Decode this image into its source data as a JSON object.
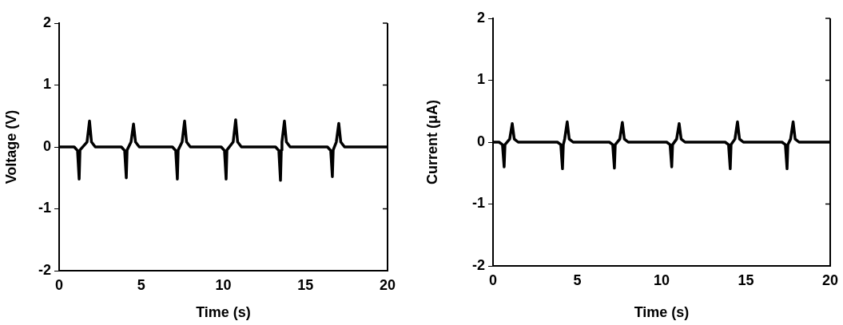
{
  "chart_data": [
    {
      "type": "line",
      "xlabel": "Time (s)",
      "ylabel": "Voltage (V)",
      "color": "#000000",
      "grid": false,
      "legend": false,
      "marker": "none",
      "xlim": [
        0,
        20
      ],
      "xticks": [
        0,
        5,
        10,
        15,
        20
      ],
      "ylim": [
        -2,
        2
      ],
      "yticks": [
        -2,
        -1,
        0,
        1,
        2
      ],
      "x": [
        0,
        0.92,
        1.12,
        1.22,
        1.27,
        1.7,
        1.85,
        1.97,
        2.2,
        3.79,
        3.99,
        4.09,
        4.14,
        4.38,
        4.53,
        4.65,
        4.88,
        6.9,
        7.1,
        7.2,
        7.25,
        7.49,
        7.64,
        7.76,
        7.99,
        9.87,
        10.07,
        10.17,
        10.22,
        10.6,
        10.75,
        10.87,
        11.1,
        13.18,
        13.38,
        13.48,
        13.53,
        13.57,
        13.72,
        13.84,
        14.07,
        16.34,
        16.54,
        16.64,
        16.69,
        16.88,
        17.03,
        17.15,
        17.38,
        20
      ],
      "values": [
        0,
        0,
        -0.06,
        -0.52,
        -0.05,
        0.08,
        0.42,
        0.08,
        0,
        0,
        -0.06,
        -0.5,
        -0.05,
        0.08,
        0.37,
        0.08,
        0,
        0,
        -0.06,
        -0.52,
        -0.05,
        0.08,
        0.42,
        0.08,
        0,
        0,
        -0.06,
        -0.52,
        -0.05,
        0.08,
        0.44,
        0.08,
        0,
        0,
        -0.06,
        -0.54,
        -0.05,
        0.08,
        0.42,
        0.08,
        0,
        0,
        -0.06,
        -0.48,
        -0.05,
        0.08,
        0.38,
        0.08,
        0,
        0
      ]
    },
    {
      "type": "line",
      "xlabel": "Time (s)",
      "ylabel": "Current (μA)",
      "color": "#000000",
      "grid": false,
      "legend": false,
      "marker": "none",
      "xlim": [
        0,
        20
      ],
      "xticks": [
        0,
        5,
        10,
        15,
        20
      ],
      "ylim": [
        -2,
        2
      ],
      "yticks": [
        -2,
        -1,
        0,
        1,
        2
      ],
      "x": [
        0,
        0.36,
        0.56,
        0.66,
        0.71,
        0.99,
        1.14,
        1.26,
        1.49,
        3.82,
        4.02,
        4.12,
        4.17,
        4.25,
        4.4,
        4.52,
        4.75,
        6.9,
        7.1,
        7.2,
        7.25,
        7.52,
        7.67,
        7.79,
        8.02,
        10.3,
        10.5,
        10.6,
        10.65,
        10.89,
        11.04,
        11.16,
        11.39,
        13.77,
        13.97,
        14.07,
        14.12,
        14.35,
        14.5,
        14.62,
        14.85,
        17.14,
        17.34,
        17.44,
        17.49,
        17.65,
        17.8,
        17.92,
        18.15,
        20
      ],
      "values": [
        0,
        0,
        -0.04,
        -0.4,
        -0.04,
        0.05,
        0.3,
        0.05,
        0,
        0,
        -0.04,
        -0.43,
        -0.04,
        0.05,
        0.33,
        0.05,
        0,
        0,
        -0.04,
        -0.42,
        -0.04,
        0.05,
        0.32,
        0.05,
        0,
        0,
        -0.04,
        -0.4,
        -0.04,
        0.05,
        0.3,
        0.05,
        0,
        0,
        -0.04,
        -0.43,
        -0.04,
        0.05,
        0.33,
        0.05,
        0,
        0,
        -0.04,
        -0.43,
        -0.04,
        0.05,
        0.33,
        0.05,
        0,
        0
      ]
    }
  ]
}
